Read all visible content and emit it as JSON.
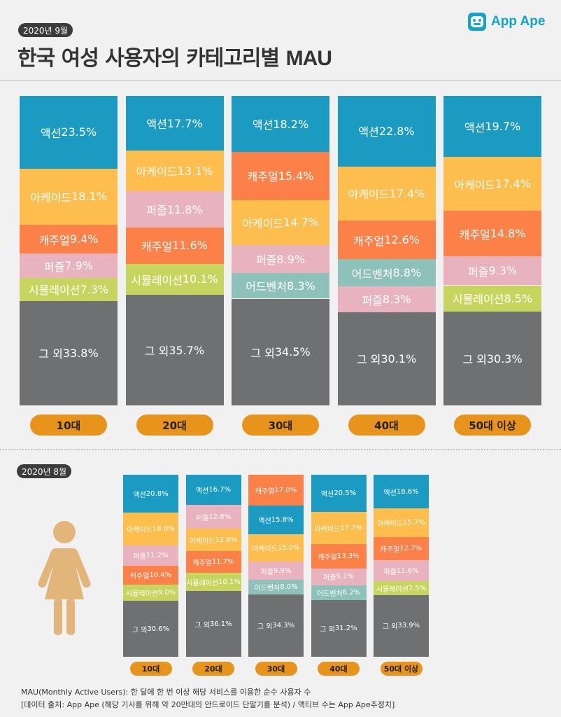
{
  "header": {
    "date_badge": "2020년 9월",
    "title_main": "한국 여성 사용자의 카테고리별 ",
    "title_mau": "MAU",
    "logo_text": "App Ape"
  },
  "section2": {
    "date_badge": "2020년 8월"
  },
  "footer": {
    "line1": "MAU(Monthly Active Users):  한 달에 한 번 이상 해당 서비스를 이용한 순수 사용자 수",
    "line2": "[데이터 출처: App Ape (해당 기사를 위해 약 20만대의 안드로이드 단말기를 분석) / 액티브 수는 App Ape추정치]"
  },
  "colors": {
    "액션": "#1b9bc1",
    "아케이드": "#fdbe4d",
    "캐주얼": "#fb8149",
    "퍼즐": "#e8b3bf",
    "시뮬레이션": "#c5d55d",
    "어드벤처": "#8ec1b9",
    "그 외": "#6f7071",
    "pill": "#e8941a",
    "woman_icon": "#e2b67a"
  },
  "chart_data": [
    {
      "type": "bar",
      "stacked": true,
      "period": "2020년 9월",
      "categories": [
        "10대",
        "20대",
        "30대",
        "40대",
        "50대 이상"
      ],
      "stacks": [
        [
          {
            "name": "액션",
            "value": 23.5
          },
          {
            "name": "아케이드",
            "value": 18.1
          },
          {
            "name": "캐주얼",
            "value": 9.4
          },
          {
            "name": "퍼즐",
            "value": 7.9
          },
          {
            "name": "시뮬레이션",
            "value": 7.3
          },
          {
            "name": "그 외",
            "value": 33.8
          }
        ],
        [
          {
            "name": "액션",
            "value": 17.7
          },
          {
            "name": "아케이드",
            "value": 13.1
          },
          {
            "name": "퍼즐",
            "value": 11.8
          },
          {
            "name": "캐주얼",
            "value": 11.6
          },
          {
            "name": "시뮬레이션",
            "value": 10.1
          },
          {
            "name": "그 외",
            "value": 35.7
          }
        ],
        [
          {
            "name": "액션",
            "value": 18.2
          },
          {
            "name": "캐주얼",
            "value": 15.4
          },
          {
            "name": "아케이드",
            "value": 14.7
          },
          {
            "name": "퍼즐",
            "value": 8.9
          },
          {
            "name": "어드벤처",
            "value": 8.3
          },
          {
            "name": "그 외",
            "value": 34.5
          }
        ],
        [
          {
            "name": "액션",
            "value": 22.8
          },
          {
            "name": "아케이드",
            "value": 17.4
          },
          {
            "name": "캐주얼",
            "value": 12.6
          },
          {
            "name": "어드벤처",
            "value": 8.8
          },
          {
            "name": "퍼즐",
            "value": 8.3
          },
          {
            "name": "그 외",
            "value": 30.1
          }
        ],
        [
          {
            "name": "액션",
            "value": 19.7
          },
          {
            "name": "아케이드",
            "value": 17.4
          },
          {
            "name": "캐주얼",
            "value": 14.8
          },
          {
            "name": "퍼즐",
            "value": 9.3
          },
          {
            "name": "시뮬레이션",
            "value": 8.5
          },
          {
            "name": "그 외",
            "value": 30.3
          }
        ]
      ]
    },
    {
      "type": "bar",
      "stacked": true,
      "period": "2020년 8월",
      "categories": [
        "10대",
        "20대",
        "30대",
        "40대",
        "50대 이상"
      ],
      "stacks": [
        [
          {
            "name": "액션",
            "value": 20.8
          },
          {
            "name": "아케이드",
            "value": 18.0
          },
          {
            "name": "퍼즐",
            "value": 11.2
          },
          {
            "name": "캐주얼",
            "value": 10.4
          },
          {
            "name": "시뮬레이션",
            "value": 9.0
          },
          {
            "name": "그 외",
            "value": 30.6
          }
        ],
        [
          {
            "name": "액션",
            "value": 16.7
          },
          {
            "name": "퍼즐",
            "value": 12.8
          },
          {
            "name": "아케이드",
            "value": 12.6
          },
          {
            "name": "캐주얼",
            "value": 11.7
          },
          {
            "name": "시뮬레이션",
            "value": 10.1
          },
          {
            "name": "그 외",
            "value": 36.1
          }
        ],
        [
          {
            "name": "캐주얼",
            "value": 17.0
          },
          {
            "name": "액션",
            "value": 15.8
          },
          {
            "name": "아케이드",
            "value": 15.0
          },
          {
            "name": "퍼즐",
            "value": 9.9
          },
          {
            "name": "어드벤처",
            "value": 8.0
          },
          {
            "name": "그 외",
            "value": 34.3
          }
        ],
        [
          {
            "name": "액션",
            "value": 20.5
          },
          {
            "name": "아케이드",
            "value": 17.7
          },
          {
            "name": "캐주얼",
            "value": 13.3
          },
          {
            "name": "퍼즐",
            "value": 9.1
          },
          {
            "name": "어드벤처",
            "value": 8.2
          },
          {
            "name": "그 외",
            "value": 31.2
          }
        ],
        [
          {
            "name": "액션",
            "value": 18.6
          },
          {
            "name": "아케이드",
            "value": 15.7
          },
          {
            "name": "캐주얼",
            "value": 12.7
          },
          {
            "name": "퍼즐",
            "value": 11.6
          },
          {
            "name": "시뮬레이션",
            "value": 7.5
          },
          {
            "name": "그 외",
            "value": 33.9
          }
        ]
      ]
    }
  ]
}
